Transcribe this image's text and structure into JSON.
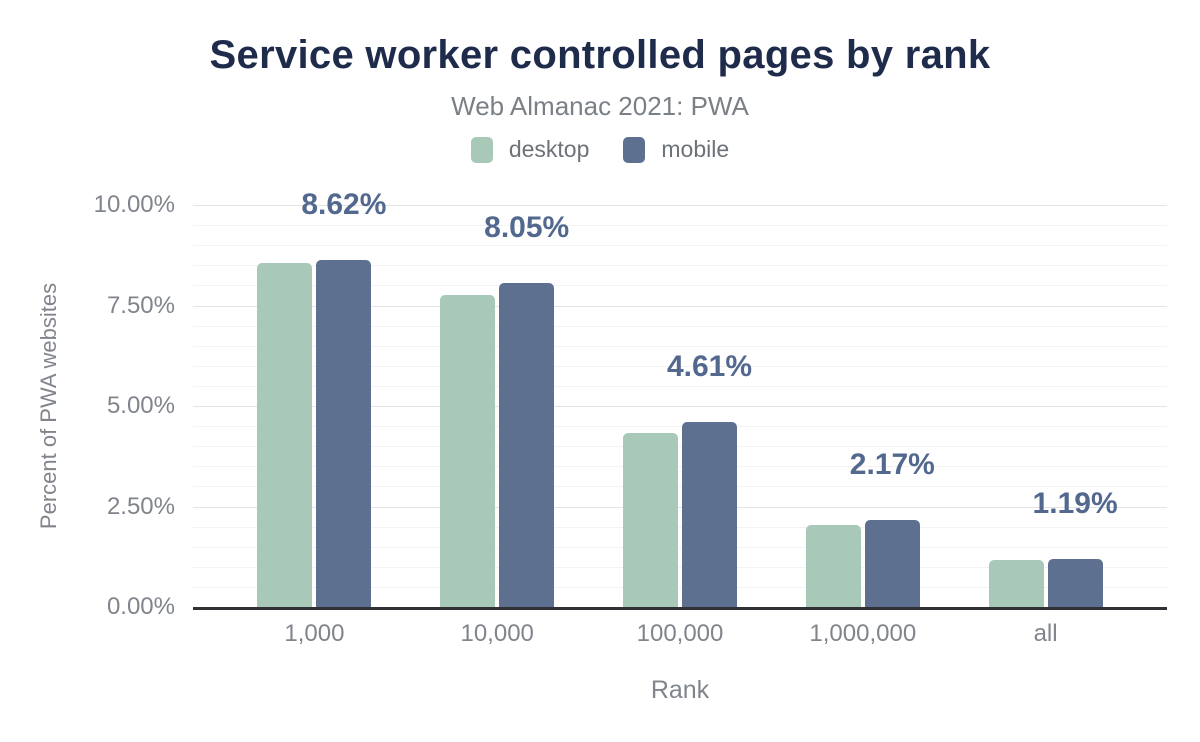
{
  "header": {
    "title": "Service worker controlled pages by rank",
    "subtitle": "Web Almanac 2021: PWA"
  },
  "chart_data": {
    "type": "bar",
    "title": "Service worker controlled pages by rank",
    "subtitle": "Web Almanac 2021: PWA",
    "categories": [
      "1,000",
      "10,000",
      "100,000",
      "1,000,000",
      "all"
    ],
    "series": [
      {
        "name": "desktop",
        "color": "#a8c9b8",
        "values": [
          8.55,
          7.75,
          4.33,
          2.03,
          1.18
        ]
      },
      {
        "name": "mobile",
        "color": "#5e7090",
        "values": [
          8.62,
          8.05,
          4.61,
          2.17,
          1.19
        ]
      }
    ],
    "value_labels": [
      "8.62%",
      "8.05%",
      "4.61%",
      "2.17%",
      "1.19%"
    ],
    "value_labels_series": "mobile",
    "xlabel": "Rank",
    "ylabel": "Percent of PWA websites",
    "ylim": [
      0,
      10
    ],
    "yticks": [
      {
        "value": 0,
        "label": "0.00%"
      },
      {
        "value": 2.5,
        "label": "2.50%"
      },
      {
        "value": 5,
        "label": "5.00%"
      },
      {
        "value": 7.5,
        "label": "7.50%"
      },
      {
        "value": 10,
        "label": "10.00%"
      }
    ],
    "grid": {
      "minor_step": 0.5,
      "major_step": 2.5,
      "visible": true
    },
    "legend_position": "top",
    "colors": {
      "title": "#1e2b4b",
      "subtitle": "#7b8086",
      "legend_text": "#6d7278",
      "tick_label": "#80858c",
      "value_label": "#53688e",
      "axis_line": "#2f3135",
      "grid_major": "#e2e3e5",
      "grid_minor": "#f3f3f5",
      "background": "#ffffff"
    }
  }
}
